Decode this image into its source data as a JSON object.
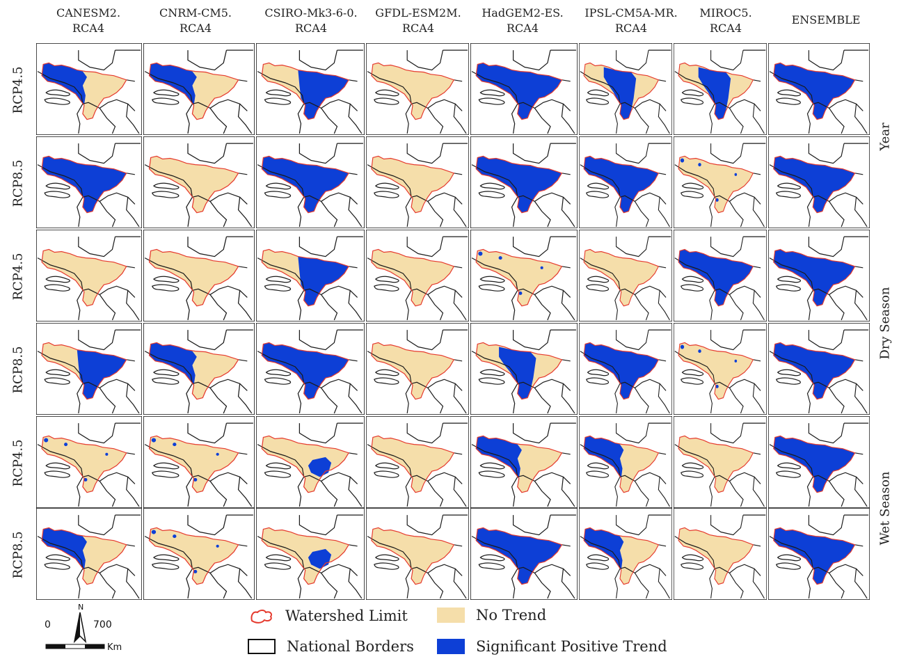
{
  "columns": [
    {
      "line1": "CANESM2.",
      "line2": "RCA4"
    },
    {
      "line1": "CNRM-CM5.",
      "line2": "RCA4"
    },
    {
      "line1": "CSIRO-Mk3-6-0.",
      "line2": "RCA4"
    },
    {
      "line1": "GFDL-ESM2M.",
      "line2": "RCA4"
    },
    {
      "line1": "HadGEM2-ES.",
      "line2": "RCA4"
    },
    {
      "line1": "IPSL-CM5A-MR.",
      "line2": "RCA4"
    },
    {
      "line1": "MIROC5.",
      "line2": "RCA4"
    },
    {
      "line1": "ENSEMBLE",
      "line2": ""
    }
  ],
  "rows": [
    {
      "scenario": "RCP4.5",
      "season": "Year"
    },
    {
      "scenario": "RCP8.5",
      "season": "Year"
    },
    {
      "scenario": "RCP4.5",
      "season": "Dry Season"
    },
    {
      "scenario": "RCP8.5",
      "season": "Dry Season"
    },
    {
      "scenario": "RCP4.5",
      "season": "Wet Season"
    },
    {
      "scenario": "RCP8.5",
      "season": "Wet Season"
    }
  ],
  "seasons": [
    "Year",
    "Dry Season",
    "Wet Season"
  ],
  "trend_codes": {
    "N": "No Trend (entire watershed)",
    "A": "Significant Positive Trend (entire watershed)",
    "W": "Significant Positive Trend (western half)",
    "E": "Significant Positive Trend (eastern half)",
    "C": "Significant Positive Trend (central)",
    "S": "Significant Positive Trend (south-central patch)",
    "D": "Significant Positive Trend (scattered dots)"
  },
  "panels": [
    [
      "W",
      "W",
      "E",
      "N",
      "A",
      "C",
      "C",
      "A"
    ],
    [
      "A",
      "N",
      "A",
      "N",
      "A",
      "A",
      "D",
      "A"
    ],
    [
      "N",
      "N",
      "E",
      "N",
      "D",
      "N",
      "A",
      "A"
    ],
    [
      "E",
      "W",
      "A",
      "N",
      "C",
      "A",
      "D",
      "A"
    ],
    [
      "D",
      "D",
      "S",
      "N",
      "W",
      "W",
      "N",
      "A"
    ],
    [
      "W",
      "D",
      "S",
      "N",
      "A",
      "W",
      "N",
      "A"
    ]
  ],
  "legend": {
    "watershed": "Watershed Limit",
    "borders": "National Borders",
    "no_trend": "No Trend",
    "positive": "Significant Positive Trend"
  },
  "scale": {
    "min": "0",
    "max": "700",
    "unit": "Km",
    "north": "N"
  },
  "colors": {
    "no_trend": "#f5deaa",
    "positive": "#0d3fd6",
    "watershed": "#e53a2e",
    "border": "#1a1a1a"
  }
}
